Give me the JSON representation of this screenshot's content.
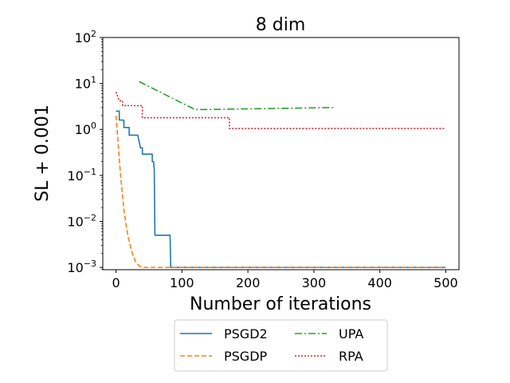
{
  "chart_data": {
    "type": "line",
    "title": "8 dim",
    "xlabel": "Number of iterations",
    "ylabel": "SL + 0.001",
    "xlim": [
      -20,
      520
    ],
    "ylim_log10": [
      -3.05,
      2
    ],
    "xticks": [
      {
        "value": 0,
        "label": "0"
      },
      {
        "value": 100,
        "label": "100"
      },
      {
        "value": 200,
        "label": "200"
      },
      {
        "value": 300,
        "label": "300"
      },
      {
        "value": 400,
        "label": "400"
      },
      {
        "value": 500,
        "label": "500"
      }
    ],
    "yticks": [
      {
        "exp": -3,
        "base": "10",
        "sup": "−3"
      },
      {
        "exp": -2,
        "base": "10",
        "sup": "−2"
      },
      {
        "exp": -1,
        "base": "10",
        "sup": "−1"
      },
      {
        "exp": 0,
        "base": "10",
        "sup": "0"
      },
      {
        "exp": 1,
        "base": "10",
        "sup": "1"
      },
      {
        "exp": 2,
        "base": "10",
        "sup": "2"
      }
    ],
    "legend_position": "below",
    "series": [
      {
        "name": "PSGD2",
        "color": "#1f77b4",
        "dash": "",
        "points": [
          [
            0,
            2.5
          ],
          [
            5,
            2.5
          ],
          [
            5,
            1.6
          ],
          [
            12,
            1.6
          ],
          [
            12,
            1.1
          ],
          [
            20,
            1.1
          ],
          [
            20,
            0.75
          ],
          [
            33,
            0.75
          ],
          [
            35,
            0.55
          ],
          [
            37,
            0.4
          ],
          [
            40,
            0.4
          ],
          [
            40,
            0.29
          ],
          [
            55,
            0.29
          ],
          [
            55,
            0.2
          ],
          [
            57,
            0.2
          ],
          [
            58,
            0.13
          ],
          [
            59,
            0.005
          ],
          [
            82,
            0.005
          ],
          [
            83,
            0.001
          ],
          [
            500,
            0.001
          ]
        ]
      },
      {
        "name": "PSGDP",
        "color": "#ff7f0e",
        "dash": "6,3",
        "points": [
          [
            0,
            2.0
          ],
          [
            2,
            0.9
          ],
          [
            4,
            0.35
          ],
          [
            6,
            0.15
          ],
          [
            8,
            0.07
          ],
          [
            10,
            0.035
          ],
          [
            12,
            0.018
          ],
          [
            15,
            0.009
          ],
          [
            18,
            0.005
          ],
          [
            22,
            0.0028
          ],
          [
            26,
            0.0018
          ],
          [
            30,
            0.0013
          ],
          [
            35,
            0.00108
          ],
          [
            42,
            0.001
          ],
          [
            500,
            0.001
          ]
        ]
      },
      {
        "name": "UPA",
        "color": "#2ca02c",
        "dash": "9,3,2,3",
        "points": [
          [
            35,
            11
          ],
          [
            120,
            2.7
          ],
          [
            200,
            2.8
          ],
          [
            330,
            3.0
          ]
        ]
      },
      {
        "name": "RPA",
        "color": "#d62728",
        "dash": "2,2",
        "points": [
          [
            0,
            6.5
          ],
          [
            5,
            4.2
          ],
          [
            10,
            4.2
          ],
          [
            10,
            3.3
          ],
          [
            40,
            3.3
          ],
          [
            40,
            1.8
          ],
          [
            172,
            1.8
          ],
          [
            172,
            1.05
          ],
          [
            500,
            1.05
          ]
        ]
      }
    ]
  }
}
